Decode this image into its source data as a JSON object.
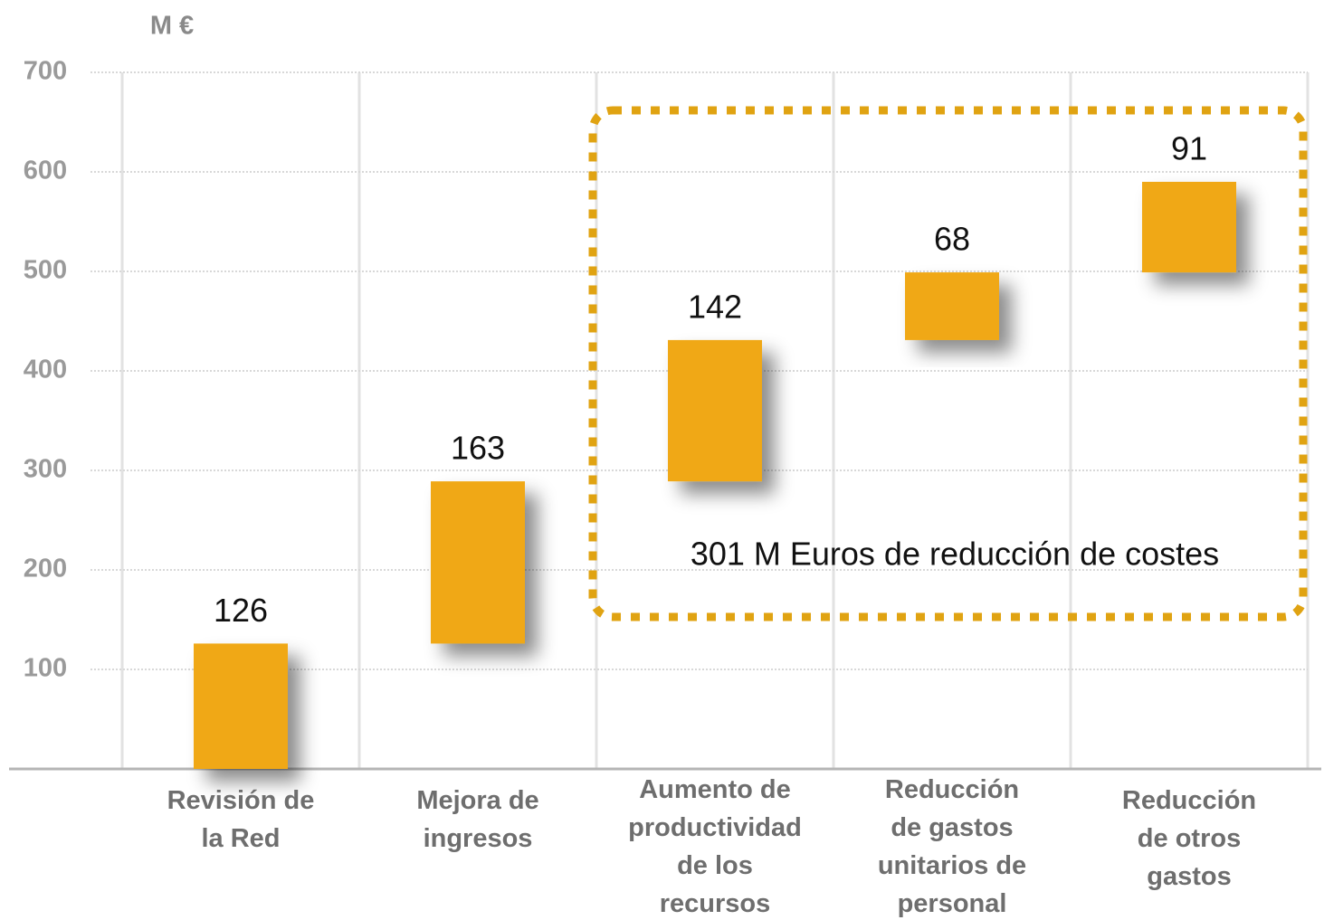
{
  "chart_data": {
    "type": "waterfall",
    "y_label": "M €",
    "categories": [
      "Revisión de\nla Red",
      "Mejora de\ningresos",
      "Aumento de\nproductividad\nde los\nrecursos",
      "Reducción\nde gastos\nunitarios de\npersonal",
      "Reducción\nde otros\ngastos"
    ],
    "values": [
      126,
      163,
      142,
      68,
      91
    ],
    "color": "#f0a812",
    "ylim": [
      0,
      700
    ],
    "yticks": [
      100,
      200,
      300,
      400,
      500,
      600,
      700
    ],
    "grid": true,
    "annotation": "301 M Euros de reducción de costes"
  }
}
